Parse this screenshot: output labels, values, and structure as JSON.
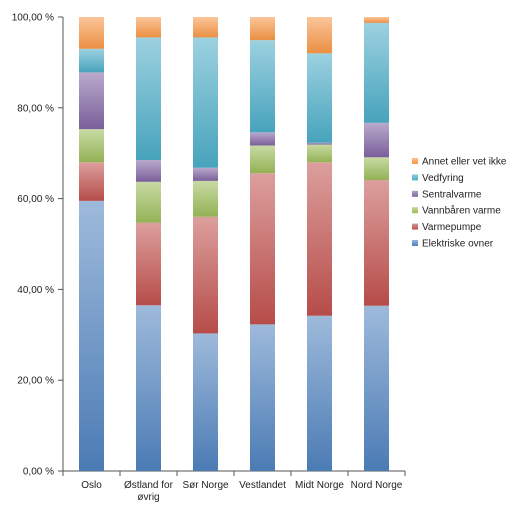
{
  "chart_data": {
    "type": "bar",
    "stacked": true,
    "percent": true,
    "title": "",
    "xlabel": "",
    "ylabel": "",
    "ylim": [
      0,
      100
    ],
    "ytick_values": [
      0,
      20,
      40,
      60,
      80,
      100
    ],
    "ytick_labels": [
      "0,00 %",
      "20,00 %",
      "40,00 %",
      "60,00 %",
      "80,00 %",
      "100,00 %"
    ],
    "grid": false,
    "legend_position": "right",
    "categories": [
      [
        "Oslo"
      ],
      [
        "Østland for",
        "øvrig"
      ],
      [
        "Sør Norge"
      ],
      [
        "Vestlandet"
      ],
      [
        "Midt Norge"
      ],
      [
        "Nord Norge"
      ]
    ],
    "series": [
      {
        "name": "Elektriske ovner",
        "color": "#4F81BD",
        "values": [
          59.5,
          36.5,
          30.3,
          32.3,
          34.2,
          36.4
        ]
      },
      {
        "name": "Varmepumpe",
        "color": "#C0504D",
        "values": [
          8.5,
          18.2,
          25.7,
          33.3,
          33.8,
          27.7
        ]
      },
      {
        "name": "Vannbåren varme",
        "color": "#9BBB59",
        "values": [
          7.3,
          9.0,
          7.9,
          6.1,
          3.9,
          5.0
        ]
      },
      {
        "name": "Sentralvarme",
        "color": "#8064A2",
        "values": [
          12.5,
          4.8,
          2.9,
          2.9,
          0.4,
          7.6
        ]
      },
      {
        "name": "Vedfyring",
        "color": "#4BACC6",
        "values": [
          5.2,
          27.0,
          28.7,
          20.3,
          19.7,
          22.0
        ]
      },
      {
        "name": "Annet eller vet ikke",
        "color": "#F79646",
        "values": [
          7.0,
          4.5,
          4.5,
          5.1,
          8.0,
          1.3
        ]
      }
    ]
  }
}
